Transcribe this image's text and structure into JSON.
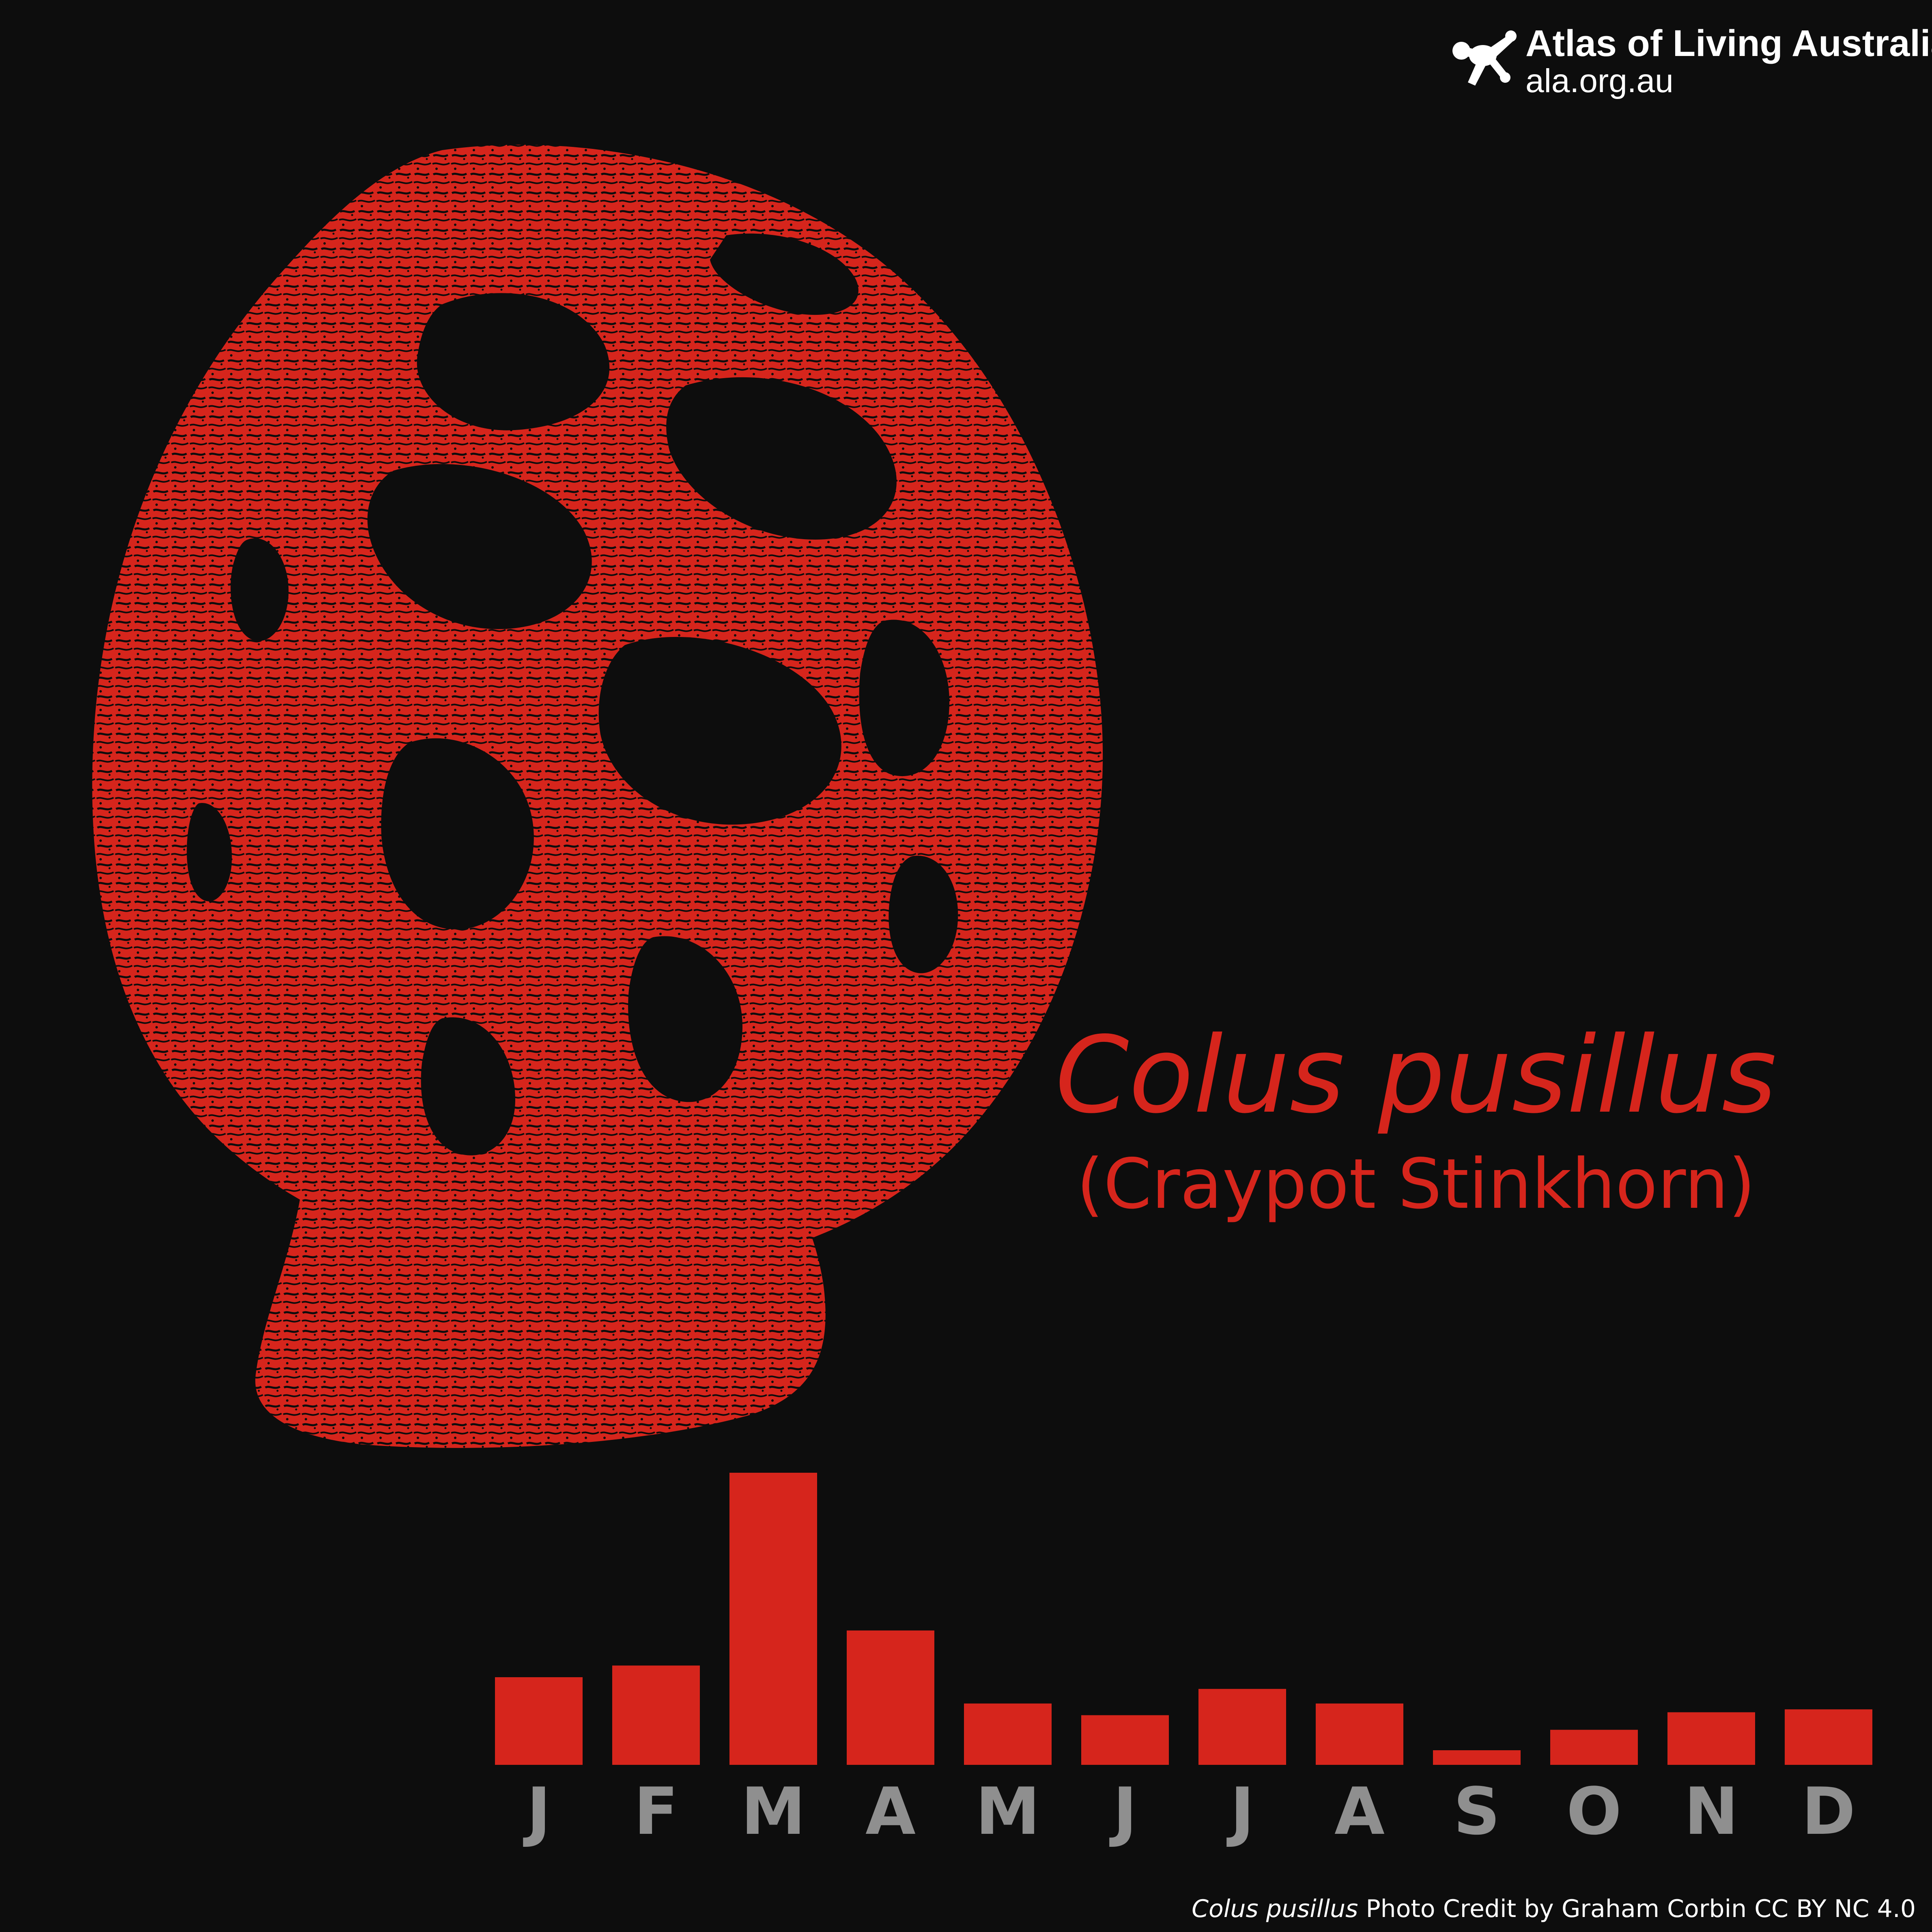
{
  "header": {
    "brand": "Atlas of Living Australia",
    "url": "ala.org.au",
    "logo_icon": "ala-figure-icon"
  },
  "species": {
    "scientific_name": "Colus pusillus",
    "common_name": "(Craypot Stinkhorn)"
  },
  "credit": {
    "species": "Colus pusillus",
    "text": "Photo Credit by Graham Corbin CC BY NC 4.0"
  },
  "colors": {
    "accent": "#d6251c",
    "background": "#0d0d0d",
    "month_label": "#8f8f8f",
    "text": "#ffffff"
  },
  "chart_data": {
    "type": "bar",
    "categories": [
      "J",
      "F",
      "M",
      "A",
      "M",
      "J",
      "J",
      "A",
      "S",
      "O",
      "N",
      "D"
    ],
    "values": [
      30,
      34,
      100,
      46,
      21,
      17,
      26,
      21,
      5,
      12,
      18,
      19
    ],
    "ylim": [
      0,
      100
    ],
    "grid": false,
    "legend": "none"
  }
}
